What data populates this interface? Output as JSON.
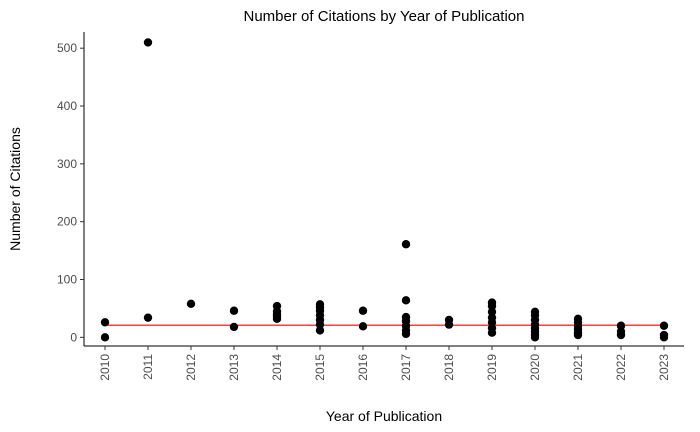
{
  "chart_data": {
    "type": "scatter",
    "title": "Number of Citations by Year of Publication",
    "xlabel": "Year of Publication",
    "ylabel": "Number of Citations",
    "categories": [
      "2010",
      "2011",
      "2012",
      "2013",
      "2014",
      "2015",
      "2016",
      "2017",
      "2018",
      "2019",
      "2020",
      "2021",
      "2022",
      "2023"
    ],
    "yticks": [
      0,
      100,
      200,
      300,
      400,
      500
    ],
    "ylim": [
      -15,
      528
    ],
    "grid": false,
    "series": [
      {
        "name": "Citations",
        "points": [
          {
            "x": "2010",
            "y": 26
          },
          {
            "x": "2010",
            "y": 0
          },
          {
            "x": "2011",
            "y": 510
          },
          {
            "x": "2011",
            "y": 34
          },
          {
            "x": "2012",
            "y": 58
          },
          {
            "x": "2013",
            "y": 46
          },
          {
            "x": "2013",
            "y": 18
          },
          {
            "x": "2014",
            "y": 54
          },
          {
            "x": "2014",
            "y": 45
          },
          {
            "x": "2014",
            "y": 40
          },
          {
            "x": "2014",
            "y": 36
          },
          {
            "x": "2014",
            "y": 32
          },
          {
            "x": "2015",
            "y": 57
          },
          {
            "x": "2015",
            "y": 52
          },
          {
            "x": "2015",
            "y": 46
          },
          {
            "x": "2015",
            "y": 38
          },
          {
            "x": "2015",
            "y": 30
          },
          {
            "x": "2015",
            "y": 22
          },
          {
            "x": "2015",
            "y": 12
          },
          {
            "x": "2016",
            "y": 46
          },
          {
            "x": "2016",
            "y": 19
          },
          {
            "x": "2017",
            "y": 161
          },
          {
            "x": "2017",
            "y": 64
          },
          {
            "x": "2017",
            "y": 35
          },
          {
            "x": "2017",
            "y": 28
          },
          {
            "x": "2017",
            "y": 20
          },
          {
            "x": "2017",
            "y": 12
          },
          {
            "x": "2017",
            "y": 6
          },
          {
            "x": "2018",
            "y": 30
          },
          {
            "x": "2018",
            "y": 22
          },
          {
            "x": "2019",
            "y": 60
          },
          {
            "x": "2019",
            "y": 54
          },
          {
            "x": "2019",
            "y": 44
          },
          {
            "x": "2019",
            "y": 34
          },
          {
            "x": "2019",
            "y": 26
          },
          {
            "x": "2019",
            "y": 16
          },
          {
            "x": "2019",
            "y": 8
          },
          {
            "x": "2020",
            "y": 44
          },
          {
            "x": "2020",
            "y": 38
          },
          {
            "x": "2020",
            "y": 30
          },
          {
            "x": "2020",
            "y": 22
          },
          {
            "x": "2020",
            "y": 16
          },
          {
            "x": "2020",
            "y": 10
          },
          {
            "x": "2020",
            "y": 4
          },
          {
            "x": "2020",
            "y": 0
          },
          {
            "x": "2021",
            "y": 32
          },
          {
            "x": "2021",
            "y": 26
          },
          {
            "x": "2021",
            "y": 20
          },
          {
            "x": "2021",
            "y": 14
          },
          {
            "x": "2021",
            "y": 8
          },
          {
            "x": "2021",
            "y": 4
          },
          {
            "x": "2022",
            "y": 20
          },
          {
            "x": "2022",
            "y": 10
          },
          {
            "x": "2022",
            "y": 4
          },
          {
            "x": "2023",
            "y": 20
          },
          {
            "x": "2023",
            "y": 4
          },
          {
            "x": "2023",
            "y": 0
          }
        ]
      }
    ],
    "trend_line": {
      "color": "#ff0000",
      "x_start": "2010",
      "x_end": "2023",
      "y_start": 21,
      "y_end": 21
    }
  }
}
